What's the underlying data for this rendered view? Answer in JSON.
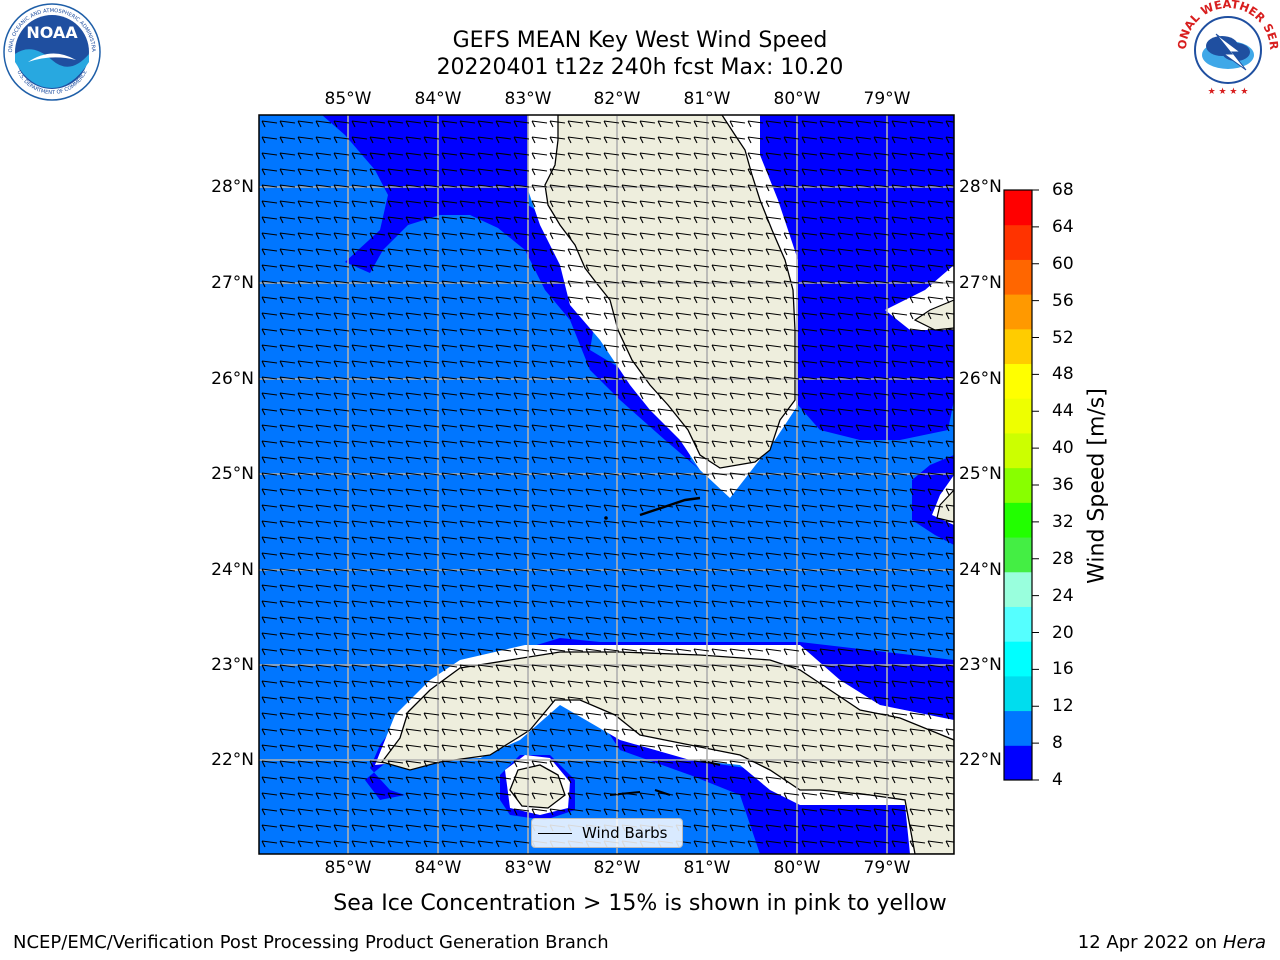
{
  "title": {
    "line1": "GEFS MEAN Key West Wind Speed",
    "line2": "20220401 t12z 240h fcst   Max: 10.20"
  },
  "logos": {
    "left": {
      "text": "NOAA",
      "ring_text": "NATIONAL OCEANIC AND ATMOSPHERIC ADMINISTRATION",
      "ring_text_bottom": "U.S. DEPARTMENT OF COMMERCE"
    },
    "right": {
      "ring_text": "NATIONAL WEATHER SERVICE"
    }
  },
  "axes": {
    "lon_ticks": [
      "85°W",
      "84°W",
      "83°W",
      "82°W",
      "81°W",
      "80°W",
      "79°W"
    ],
    "lat_ticks": [
      "28°N",
      "27°N",
      "26°N",
      "25°N",
      "24°N",
      "23°N",
      "22°N"
    ]
  },
  "colorbar": {
    "label": "Wind Speed [m/s]",
    "ticks": [
      "68",
      "64",
      "60",
      "56",
      "52",
      "48",
      "44",
      "40",
      "36",
      "32",
      "28",
      "24",
      "20",
      "16",
      "12",
      "8",
      "4"
    ],
    "colors_bottom_to_top": [
      "#0000ff",
      "#0076ff",
      "#00ddee",
      "#00ffff",
      "#55ffff",
      "#99ffdd",
      "#44ee44",
      "#22ff00",
      "#88ff00",
      "#ccff00",
      "#eeff00",
      "#ffff00",
      "#ffcc00",
      "#ff9900",
      "#ff6600",
      "#ff3300",
      "#ff0000"
    ]
  },
  "colors": {
    "land": "#eeeedd",
    "ocean_8_12": "#0076ff",
    "ocean_4_8": "#0000ff",
    "gridline": "#b0b0b0"
  },
  "legend": {
    "label": "Wind Barbs"
  },
  "notes": {
    "sea_ice": "Sea Ice Concentration > 15% is shown in pink to yellow"
  },
  "footer": {
    "left": "NCEP/EMC/Verification Post Processing Product Generation Branch",
    "right_prefix": "12 Apr 2022 on ",
    "right_host": "Hera"
  }
}
